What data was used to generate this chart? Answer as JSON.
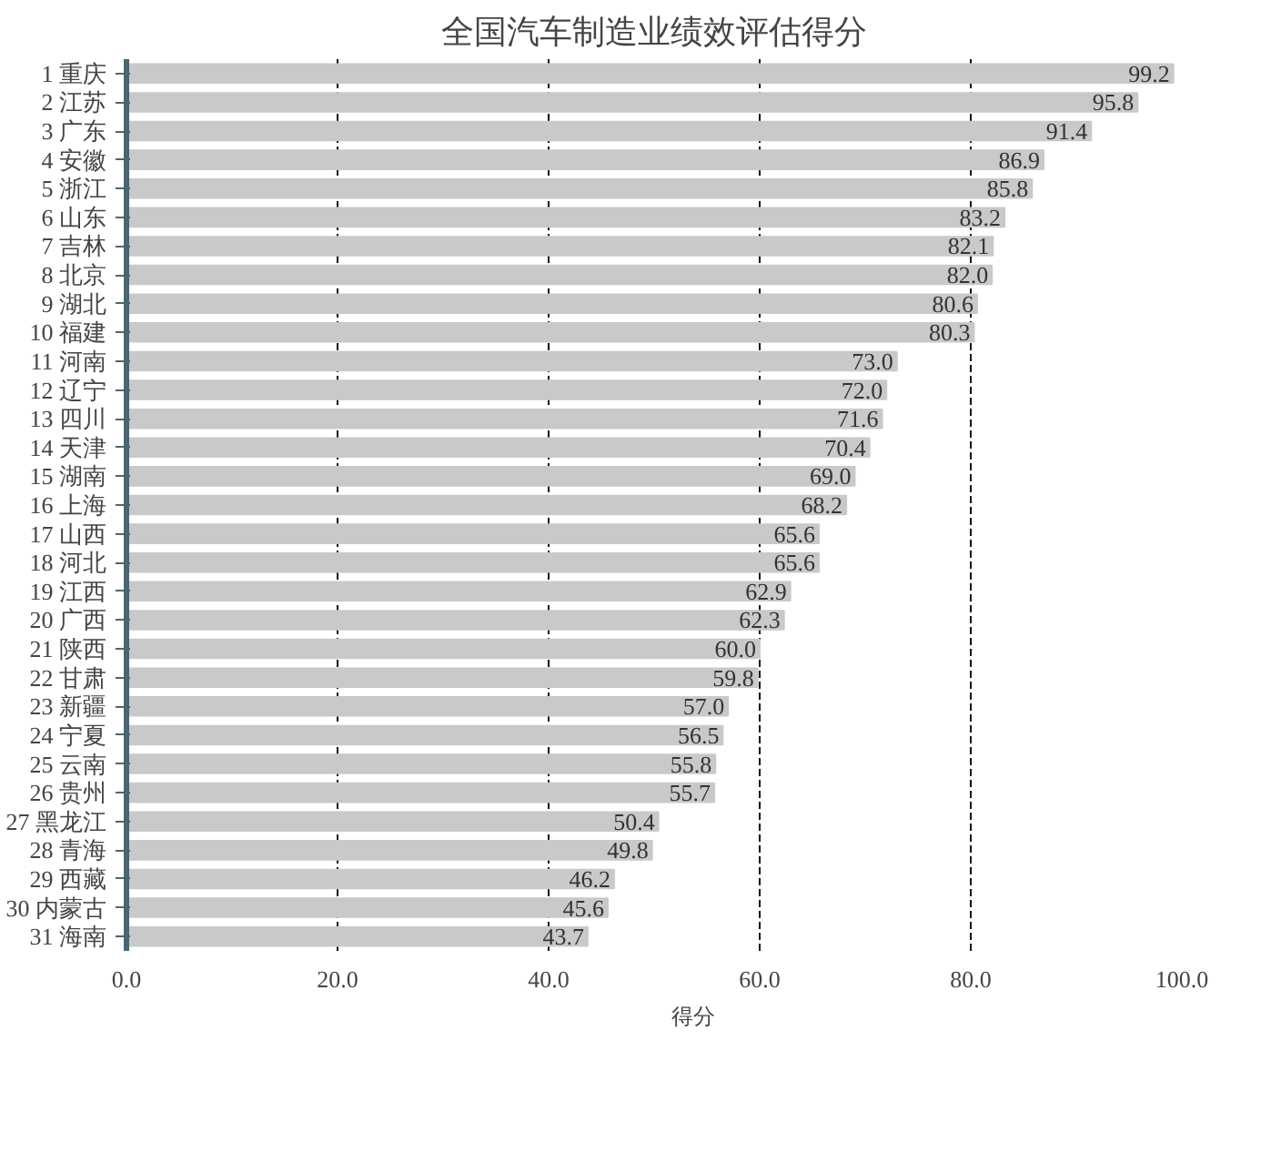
{
  "chart_data": {
    "type": "bar",
    "orientation": "horizontal",
    "title": "全国汽车制造业绩效评估得分",
    "categories": [
      "1 重庆",
      "2 江苏",
      "3 广东",
      "4 安徽",
      "5 浙江",
      "6 山东",
      "7 吉林",
      "8 北京",
      "9 湖北",
      "10 福建",
      "11 河南",
      "12 辽宁",
      "13 四川",
      "14 天津",
      "15 湖南",
      "16 上海",
      "17 山西",
      "18 河北",
      "19 江西",
      "20 广西",
      "21 陕西",
      "22 甘肃",
      "23 新疆",
      "24 宁夏",
      "25 云南",
      "26 贵州",
      "27 黑龙江",
      "28 青海",
      "29 西藏",
      "30 内蒙古",
      "31 海南"
    ],
    "series": [
      {
        "name": "得分",
        "color": "#c8c9cb",
        "values": [
          99.2,
          95.8,
          91.4,
          86.9,
          85.8,
          83.2,
          82.1,
          82.0,
          80.6,
          80.3,
          73.0,
          72.0,
          71.6,
          70.4,
          69.0,
          68.2,
          65.6,
          65.6,
          62.9,
          62.3,
          60.0,
          59.8,
          57.0,
          56.5,
          55.8,
          55.7,
          50.4,
          49.8,
          46.2,
          45.6,
          43.7
        ]
      }
    ],
    "value_labels": [
      "99.2",
      "95.8",
      "91.4",
      "86.9",
      "85.8",
      "83.2",
      "82.1",
      "82.0",
      "80.6",
      "80.3",
      "73.0",
      "72.0",
      "71.6",
      "70.4",
      "69.0",
      "68.2",
      "65.6",
      "65.6",
      "62.9",
      "62.3",
      "60.0",
      "59.8",
      "57.0",
      "56.5",
      "55.8",
      "55.7",
      "50.4",
      "49.8",
      "46.2",
      "45.6",
      "43.7"
    ],
    "xlim": [
      0,
      100
    ],
    "xticks": [
      {
        "value": 0,
        "label": "0.0"
      },
      {
        "value": 20,
        "label": "20.0"
      },
      {
        "value": 40,
        "label": "40.0"
      },
      {
        "value": 60,
        "label": "60.0"
      },
      {
        "value": 80,
        "label": "80.0"
      },
      {
        "value": 100,
        "label": "100.0"
      }
    ],
    "grid": "x",
    "legend": "bottom"
  }
}
